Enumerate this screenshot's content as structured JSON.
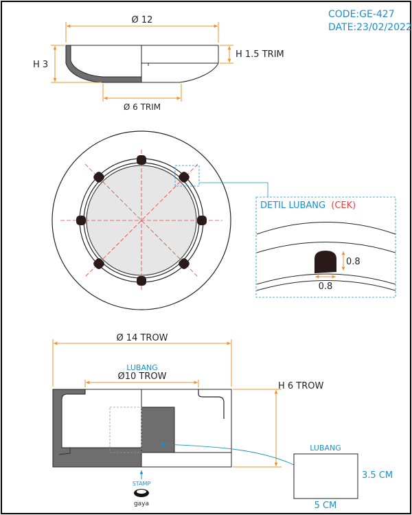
{
  "header": {
    "code": "CODE:GE-427",
    "date": "DATE:23/02/2022",
    "color": "#1a8fd0"
  },
  "top_view": {
    "diameter_label": "Ø 12",
    "height_label": "H 3",
    "trim_height_label": "H 1.5 TRIM",
    "base_label": "Ø 6 TRIM"
  },
  "plan_view": {
    "detail_title_prefix": "DETIL LUBANG",
    "detail_title_suffix": "(CEK)",
    "detail_height": "0.8",
    "detail_width": "0.8",
    "title_color": "#1a8fd0",
    "check_color": "#e84040"
  },
  "section_view": {
    "diameter_label": "Ø 14 TROW",
    "lubang_label": "LUBANG",
    "inner_diameter_label": "Ø10 TROW",
    "height_label": "H 6 TROW",
    "stamp_label": "STAMP",
    "brand": "gaya"
  },
  "lubang_box": {
    "label": "LUBANG",
    "height": "3.5 CM",
    "width": "5 CM"
  },
  "colors": {
    "dimension": "#f0902a",
    "leader": "#1a8fd0",
    "centerline": "#e84040",
    "body_fill": "#6e6e6e",
    "plate_fill": "#e6e6e6",
    "rubber": "#2b1a1a"
  }
}
